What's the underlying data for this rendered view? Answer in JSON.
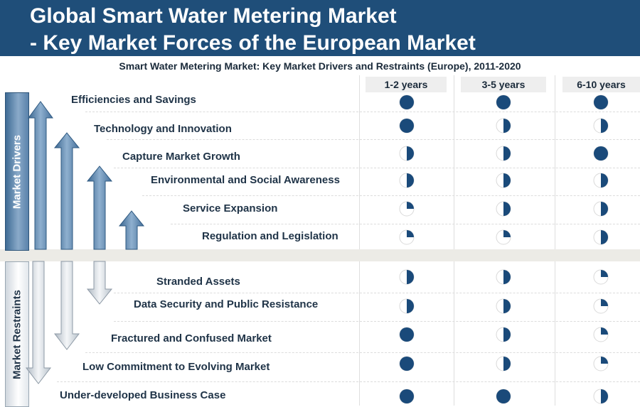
{
  "header": {
    "title_line1": "Global Smart Water Metering Market",
    "title_line2": "- Key Market Forces of the European Market"
  },
  "subtitle": "Smart Water Metering Market: Key Market Drivers and Restraints (Europe), 2011-2020",
  "columns": [
    "1-2 years",
    "3-5 years",
    "6-10 years"
  ],
  "drivers": {
    "label": "Market Drivers",
    "items": [
      {
        "name": "Efficiencies and Savings",
        "impact": [
          1,
          1,
          1
        ]
      },
      {
        "name": "Technology and Innovation",
        "impact": [
          1,
          0.5,
          0.5
        ]
      },
      {
        "name": "Capture Market Growth",
        "impact": [
          0.5,
          0.5,
          1
        ]
      },
      {
        "name": "Environmental and Social Awareness",
        "impact": [
          0.5,
          0.5,
          0.5
        ]
      },
      {
        "name": "Service Expansion",
        "impact": [
          0.25,
          0.5,
          0.5
        ]
      },
      {
        "name": "Regulation and Legislation",
        "impact": [
          0.25,
          0.25,
          0.5
        ]
      }
    ]
  },
  "restraints": {
    "label": "Market Restraints",
    "items": [
      {
        "name": "Stranded Assets",
        "impact": [
          0.5,
          0.5,
          0.25
        ]
      },
      {
        "name": "Data Security and Public Resistance",
        "impact": [
          0.5,
          0.5,
          0.25
        ]
      },
      {
        "name": "Fractured and Confused Market",
        "impact": [
          1,
          0.5,
          0.25
        ]
      },
      {
        "name": "Low Commitment to Evolving Market",
        "impact": [
          1,
          0.5,
          0.25
        ]
      },
      {
        "name": "Under-developed Business Case",
        "impact": [
          1,
          1,
          0.5
        ]
      }
    ]
  },
  "colors": {
    "banner": "#1f4e79",
    "harvey_fill": "#1a4a7a",
    "driver_arrow": "#4f76a0",
    "restraint_arrow": "#c8d0d8"
  }
}
